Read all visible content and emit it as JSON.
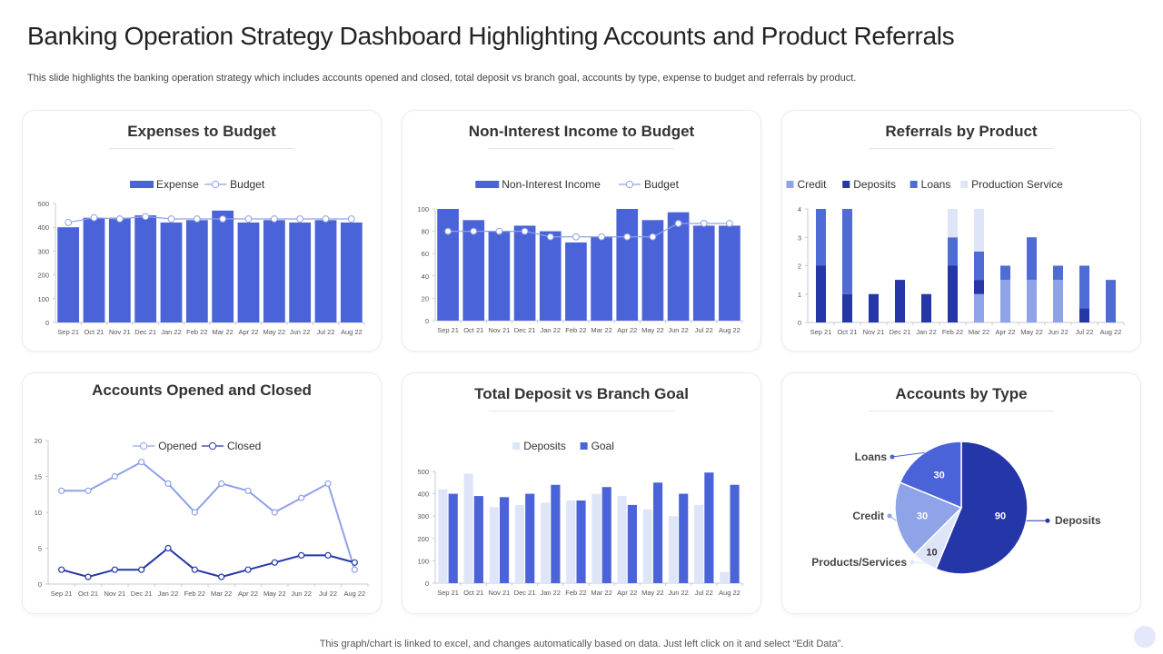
{
  "page": {
    "title": "Banking Operation Strategy Dashboard Highlighting Accounts and Product Referrals",
    "subtitle": "This slide highlights the banking operation strategy which includes accounts opened and closed, total deposit vs branch goal, accounts by type, expense to budget and referrals by product.",
    "footer": "This graph/chart is linked to excel, and changes automatically based on data. Just left click on it and select “Edit Data”."
  },
  "colors": {
    "primary": "#4a63d8",
    "dark": "#2436a8",
    "medium": "#4f6bd6",
    "light": "#8fa3e8",
    "pale": "#dfe5f8",
    "line_light": "#8ea2e6"
  },
  "chart_data": [
    {
      "id": "expenses",
      "type": "bar",
      "title": "Expenses to Budget",
      "categories": [
        "Sep 21",
        "Oct 21",
        "Nov 21",
        "Dec 21",
        "Jan 22",
        "Feb 22",
        "Mar 22",
        "Apr 22",
        "May 22",
        "Jun 22",
        "Jul 22",
        "Aug 22"
      ],
      "series": [
        {
          "name": "Expense",
          "kind": "bar",
          "values": [
            400,
            440,
            440,
            450,
            420,
            430,
            470,
            420,
            430,
            420,
            430,
            420
          ]
        },
        {
          "name": "Budget",
          "kind": "line",
          "values": [
            420,
            440,
            435,
            445,
            435,
            435,
            435,
            435,
            435,
            435,
            435,
            435
          ]
        }
      ],
      "ylim": [
        0,
        500
      ],
      "yticks": [
        0,
        100,
        200,
        300,
        400,
        500
      ],
      "legend": "top"
    },
    {
      "id": "income",
      "type": "bar",
      "title": "Non-Interest Income to Budget",
      "categories": [
        "Sep 21",
        "Oct 21",
        "Nov 21",
        "Dec 21",
        "Jan 22",
        "Feb 22",
        "Mar 22",
        "Apr 22",
        "May 22",
        "Jun 22",
        "Jul 22",
        "Aug 22"
      ],
      "series": [
        {
          "name": "Non-Interest Income",
          "kind": "bar",
          "values": [
            100,
            90,
            80,
            85,
            80,
            70,
            75,
            100,
            90,
            97,
            85,
            85
          ]
        },
        {
          "name": "Budget",
          "kind": "line",
          "values": [
            80,
            80,
            80,
            80,
            75,
            75,
            75,
            75,
            75,
            87,
            87,
            87
          ]
        }
      ],
      "ylim": [
        0,
        100
      ],
      "yticks": [
        0,
        20,
        40,
        60,
        80,
        100
      ],
      "legend": "top"
    },
    {
      "id": "referrals",
      "type": "bar",
      "stacked": true,
      "title": "Referrals by Product",
      "categories": [
        "Sep 21",
        "Oct 21",
        "Nov 21",
        "Dec 21",
        "Jan 22",
        "Feb 22",
        "Mar 22",
        "Apr 22",
        "May 22",
        "Jun 22",
        "Jul 22",
        "Aug 22"
      ],
      "series": [
        {
          "name": "Credit",
          "color_key": "light",
          "values": [
            0,
            0,
            0,
            0,
            0,
            0,
            1,
            1.5,
            1.5,
            1.5,
            0,
            0
          ]
        },
        {
          "name": "Deposits",
          "color_key": "dark",
          "values": [
            2,
            1,
            1,
            1.5,
            1,
            2,
            0.5,
            0,
            0,
            0,
            0.5,
            0
          ]
        },
        {
          "name": "Loans",
          "color_key": "medium",
          "values": [
            2,
            3,
            0,
            0,
            0,
            1,
            1,
            0.5,
            1.5,
            0.5,
            1.5,
            1.5
          ]
        },
        {
          "name": "Production Service",
          "color_key": "pale",
          "values": [
            0,
            0,
            0,
            0,
            0,
            1,
            1.5,
            0,
            0,
            0,
            0,
            0
          ]
        }
      ],
      "ylim": [
        0,
        4
      ],
      "yticks": [
        0,
        1,
        2,
        3,
        4
      ],
      "legend": "top"
    },
    {
      "id": "accounts",
      "type": "line",
      "title": "Accounts Opened and Closed",
      "categories": [
        "Sep 21",
        "Oct 21",
        "Nov 21",
        "Dec 21",
        "Jan 22",
        "Feb 22",
        "Mar 22",
        "Apr 22",
        "May 22",
        "Jun 22",
        "Jul 22",
        "Aug 22"
      ],
      "series": [
        {
          "name": "Opened",
          "color_key": "line_light",
          "values": [
            13,
            13,
            15,
            17,
            14,
            10,
            14,
            13,
            10,
            12,
            14,
            2
          ]
        },
        {
          "name": "Closed",
          "color_key": "dark",
          "values": [
            2,
            1,
            2,
            2,
            5,
            2,
            1,
            2,
            3,
            4,
            4,
            3
          ]
        }
      ],
      "ylim": [
        0,
        20
      ],
      "yticks": [
        0,
        5,
        10,
        15,
        20
      ],
      "legend": "top"
    },
    {
      "id": "deposit",
      "type": "bar",
      "title": "Total Deposit vs Branch Goal",
      "categories": [
        "Sep 21",
        "Oct 21",
        "Nov 21",
        "Dec 21",
        "Jan 22",
        "Feb 22",
        "Mar 22",
        "Apr 22",
        "May 22",
        "Jun 22",
        "Jul 22",
        "Aug 22"
      ],
      "series": [
        {
          "name": "Deposits",
          "color_key": "pale",
          "values": [
            420,
            490,
            340,
            350,
            360,
            370,
            400,
            390,
            330,
            300,
            350,
            50
          ]
        },
        {
          "name": "Goal",
          "color_key": "primary",
          "values": [
            400,
            390,
            385,
            400,
            440,
            370,
            430,
            350,
            450,
            400,
            495,
            440
          ]
        }
      ],
      "ylim": [
        0,
        500
      ],
      "yticks": [
        0,
        100,
        200,
        300,
        400,
        500
      ],
      "legend": "top"
    },
    {
      "id": "types",
      "type": "pie",
      "title": "Accounts by Type",
      "slices": [
        {
          "label": "Deposits",
          "value": 90,
          "color_key": "dark"
        },
        {
          "label": "Products/Services",
          "value": 10,
          "color_key": "pale"
        },
        {
          "label": "Credit",
          "value": 30,
          "color_key": "light"
        },
        {
          "label": "Loans",
          "value": 30,
          "color_key": "primary"
        }
      ]
    }
  ]
}
